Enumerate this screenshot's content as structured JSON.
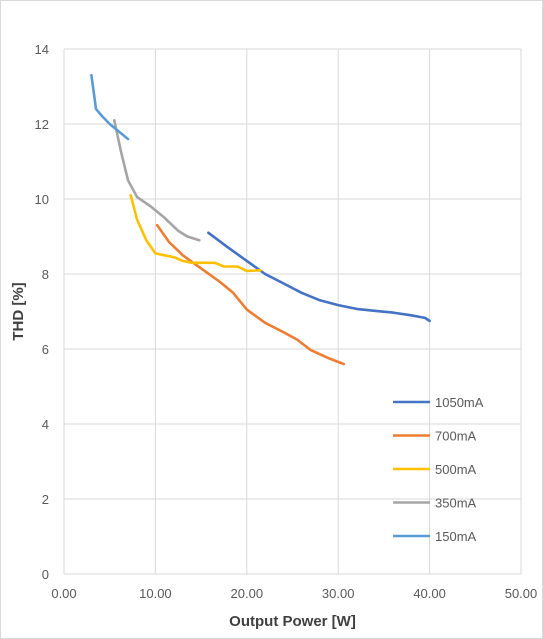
{
  "chart_data": {
    "type": "line",
    "title": "",
    "xlabel": "Output Power [W]",
    "ylabel": "THD [%]",
    "xlim": [
      0,
      50
    ],
    "ylim": [
      0,
      14
    ],
    "x_ticks": [
      "0.00",
      "10.00",
      "20.00",
      "30.00",
      "40.00",
      "50.00"
    ],
    "y_ticks": [
      "0",
      "2",
      "4",
      "6",
      "8",
      "10",
      "12",
      "14"
    ],
    "grid": true,
    "legend_position": "right",
    "series": [
      {
        "name": "1050mA",
        "color": "#4472C4",
        "points": [
          [
            15.8,
            9.1
          ],
          [
            18,
            8.7
          ],
          [
            20,
            8.35
          ],
          [
            22,
            8.0
          ],
          [
            24,
            7.75
          ],
          [
            26,
            7.5
          ],
          [
            28,
            7.3
          ],
          [
            30,
            7.17
          ],
          [
            32,
            7.07
          ],
          [
            34,
            7.02
          ],
          [
            36,
            6.97
          ],
          [
            38,
            6.9
          ],
          [
            39.5,
            6.83
          ],
          [
            40,
            6.75
          ]
        ]
      },
      {
        "name": "700mA",
        "color": "#ED7D31",
        "points": [
          [
            10.2,
            9.3
          ],
          [
            11.5,
            8.85
          ],
          [
            13,
            8.5
          ],
          [
            15,
            8.15
          ],
          [
            17,
            7.8
          ],
          [
            18.5,
            7.5
          ],
          [
            20,
            7.05
          ],
          [
            22,
            6.7
          ],
          [
            24,
            6.45
          ],
          [
            25.5,
            6.25
          ],
          [
            27,
            5.97
          ],
          [
            29,
            5.75
          ],
          [
            30.6,
            5.6
          ]
        ]
      },
      {
        "name": "500mA",
        "color": "#FFC000",
        "points": [
          [
            7.3,
            10.1
          ],
          [
            8,
            9.45
          ],
          [
            9,
            8.9
          ],
          [
            10,
            8.55
          ],
          [
            11,
            8.5
          ],
          [
            12,
            8.45
          ],
          [
            13,
            8.35
          ],
          [
            14,
            8.3
          ],
          [
            15,
            8.3
          ],
          [
            16.5,
            8.3
          ],
          [
            17.5,
            8.2
          ],
          [
            19,
            8.2
          ],
          [
            20,
            8.08
          ],
          [
            21.5,
            8.1
          ]
        ]
      },
      {
        "name": "350mA",
        "color": "#A5A5A5",
        "points": [
          [
            5.5,
            12.1
          ],
          [
            6.2,
            11.3
          ],
          [
            7,
            10.5
          ],
          [
            8,
            10.05
          ],
          [
            9.5,
            9.8
          ],
          [
            11,
            9.5
          ],
          [
            12.5,
            9.15
          ],
          [
            13.5,
            9.0
          ],
          [
            14.8,
            8.9
          ]
        ]
      },
      {
        "name": "150mA",
        "color": "#5B9BD5",
        "points": [
          [
            3.0,
            13.3
          ],
          [
            3.5,
            12.4
          ],
          [
            4.2,
            12.2
          ],
          [
            5,
            12.0
          ],
          [
            6,
            11.8
          ],
          [
            7,
            11.6
          ]
        ]
      }
    ]
  }
}
